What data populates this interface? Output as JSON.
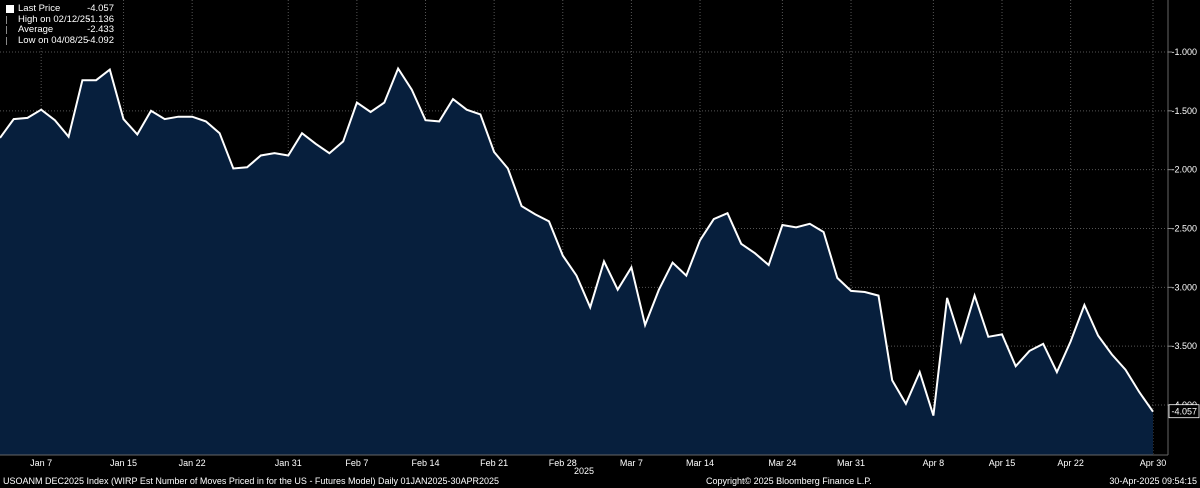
{
  "chart_data": {
    "type": "area",
    "legend": [
      {
        "label": "Last Price",
        "value": "-4.057",
        "color": "#ffffff"
      },
      {
        "label": "High on 02/12/25",
        "value": "-1.136",
        "color": "#555555"
      },
      {
        "label": "Average",
        "value": "-2.433",
        "color": "#555555"
      },
      {
        "label": "Low on 04/08/25",
        "value": "-4.092",
        "color": "#555555"
      }
    ],
    "ylim": [
      -4.5,
      -0.75
    ],
    "yticks": [
      "-1.000",
      "-1.500",
      "-2.000",
      "-2.500",
      "-3.000",
      "-3.500",
      "-4.000"
    ],
    "ytick_values": [
      -1.0,
      -1.5,
      -2.0,
      -2.5,
      -3.0,
      -3.5,
      -4.0
    ],
    "last_label": "-4.057",
    "xticks": [
      {
        "label": "Jan 7",
        "i": 3
      },
      {
        "label": "Jan 15",
        "i": 9
      },
      {
        "label": "Jan 22",
        "i": 14
      },
      {
        "label": "Jan 31",
        "i": 21
      },
      {
        "label": "Feb 7",
        "i": 26
      },
      {
        "label": "Feb 14",
        "i": 31
      },
      {
        "label": "Feb 21",
        "i": 36
      },
      {
        "label": "Feb 28",
        "i": 41
      },
      {
        "label": "Mar 7",
        "i": 46
      },
      {
        "label": "Mar 14",
        "i": 51
      },
      {
        "label": "Mar 24",
        "i": 57
      },
      {
        "label": "Mar 31",
        "i": 62
      },
      {
        "label": "Apr 8",
        "i": 68
      },
      {
        "label": "Apr 15",
        "i": 73
      },
      {
        "label": "Apr 22",
        "i": 78
      },
      {
        "label": "Apr 30",
        "i": 84
      }
    ],
    "year_label": "2025",
    "values": [
      -1.73,
      -1.57,
      -1.56,
      -1.49,
      -1.58,
      -1.72,
      -1.24,
      -1.24,
      -1.15,
      -1.57,
      -1.7,
      -1.5,
      -1.57,
      -1.55,
      -1.55,
      -1.59,
      -1.69,
      -1.99,
      -1.98,
      -1.88,
      -1.86,
      -1.88,
      -1.69,
      -1.78,
      -1.86,
      -1.76,
      -1.43,
      -1.51,
      -1.43,
      -1.14,
      -1.32,
      -1.58,
      -1.59,
      -1.4,
      -1.49,
      -1.53,
      -1.85,
      -1.99,
      -2.31,
      -2.38,
      -2.44,
      -2.73,
      -2.9,
      -3.17,
      -2.78,
      -3.02,
      -2.83,
      -3.32,
      -3.02,
      -2.79,
      -2.9,
      -2.6,
      -2.42,
      -2.37,
      -2.63,
      -2.71,
      -2.81,
      -2.47,
      -2.49,
      -2.46,
      -2.53,
      -2.92,
      -3.03,
      -3.04,
      -3.07,
      -3.79,
      -3.99,
      -3.72,
      -4.09,
      -3.09,
      -3.46,
      -3.07,
      -3.42,
      -3.4,
      -3.67,
      -3.54,
      -3.48,
      -3.72,
      -3.46,
      -3.15,
      -3.41,
      -3.57,
      -3.7,
      -3.89,
      -4.057
    ]
  },
  "footer": {
    "source": "USOANM DEC2025 Index (WIRP Est Number of Moves Priced in for the US - Futures Model)  Daily 01JAN2025-30APR2025",
    "copyright": "Copyright© 2025 Bloomberg Finance L.P.",
    "timestamp": "30-Apr-2025 09:54:15"
  }
}
